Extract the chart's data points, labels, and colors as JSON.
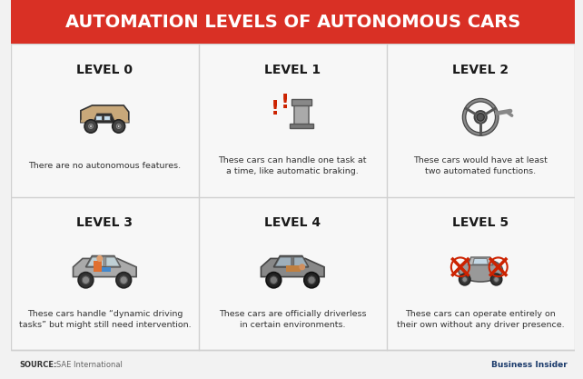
{
  "title": "AUTOMATION LEVELS OF AUTONOMOUS CARS",
  "title_bg": "#d93025",
  "title_color": "#ffffff",
  "bg_color": "#f2f2f2",
  "cell_bg": "#f7f7f7",
  "grid_line_color": "#d0d0d0",
  "source_bold": "SOURCE:",
  "source_normal": " SAE International",
  "source_color": "#666666",
  "brand_text": "Business Insider",
  "brand_color": "#1a3a6b",
  "label_color": "#1a1a1a",
  "desc_color": "#333333",
  "levels": [
    {
      "title": "LEVEL 0",
      "description": "There are no autonomous features."
    },
    {
      "title": "LEVEL 1",
      "description": "These cars can handle one task at\na time, like automatic braking."
    },
    {
      "title": "LEVEL 2",
      "description": "These cars would have at least\ntwo automated functions."
    },
    {
      "title": "LEVEL 3",
      "description": "These cars handle “dynamic driving\ntasks” but might still need intervention."
    },
    {
      "title": "LEVEL 4",
      "description": "These cars are officially driverless\nin certain environments."
    },
    {
      "title": "LEVEL 5",
      "description": "These cars can operate entirely on\ntheir own without any driver presence."
    }
  ]
}
